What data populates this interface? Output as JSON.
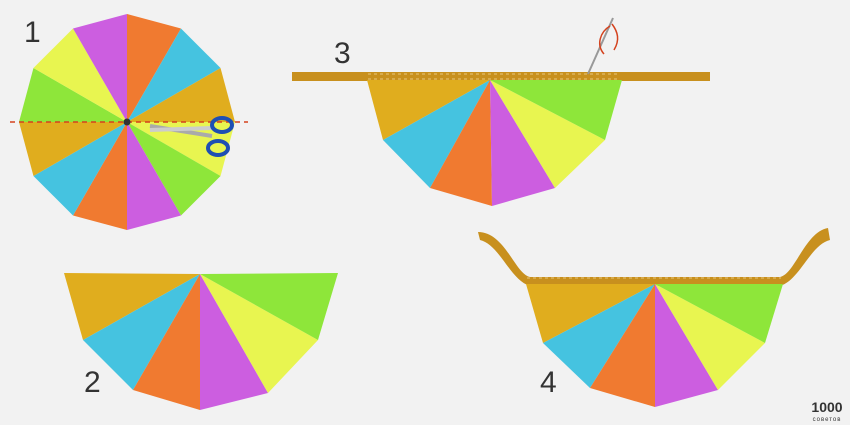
{
  "steps": [
    {
      "label": "1"
    },
    {
      "label": "2"
    },
    {
      "label": "3"
    },
    {
      "label": "4"
    }
  ],
  "logo": {
    "number": "1000",
    "word": "советов"
  }
}
